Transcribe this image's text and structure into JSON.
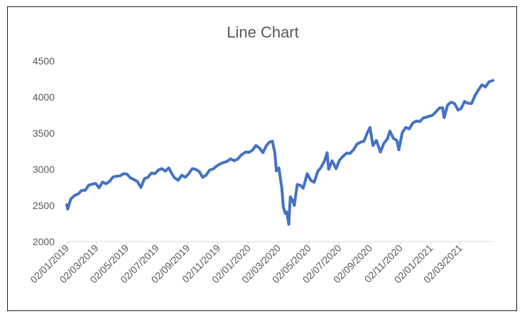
{
  "chart_data": {
    "type": "line",
    "title": "Line Chart",
    "xlabel": "",
    "ylabel": "",
    "ylim": [
      2000,
      4500
    ],
    "y_ticks": [
      2000,
      2500,
      3000,
      3500,
      4000,
      4500
    ],
    "y_tick_labels": [
      "2000",
      "2500",
      "3000",
      "3500",
      "4000",
      "4500"
    ],
    "x_range": [
      "2019-01-02",
      "2021-05-07"
    ],
    "x_tick_dates": [
      "2019-01-02",
      "2019-03-02",
      "2019-05-02",
      "2019-07-02",
      "2019-09-02",
      "2019-11-02",
      "2020-01-02",
      "2020-03-02",
      "2020-05-02",
      "2020-07-02",
      "2020-09-02",
      "2020-11-02",
      "2021-01-02",
      "2021-03-02"
    ],
    "x_tick_labels": [
      "02/01/2019",
      "02/03/2019",
      "02/05/2019",
      "02/07/2019",
      "02/09/2019",
      "02/11/2019",
      "02/01/2020",
      "02/03/2020",
      "02/05/2020",
      "02/07/2020",
      "02/09/2020",
      "02/11/2020",
      "02/01/2021",
      "02/03/2021"
    ],
    "grid": false,
    "legend": "none",
    "line_color": "#4472c4",
    "axis_color": "#d9d9d9",
    "series": [
      {
        "x": [
          "2019-01-02",
          "2019-01-04",
          "2019-01-10",
          "2019-01-18",
          "2019-01-25",
          "2019-02-01",
          "2019-02-08",
          "2019-02-15",
          "2019-02-22",
          "2019-03-01",
          "2019-03-08",
          "2019-03-15",
          "2019-03-22",
          "2019-03-29",
          "2019-04-05",
          "2019-04-12",
          "2019-04-19",
          "2019-04-26",
          "2019-05-03",
          "2019-05-10",
          "2019-05-17",
          "2019-05-24",
          "2019-05-31",
          "2019-06-07",
          "2019-06-14",
          "2019-06-21",
          "2019-06-28",
          "2019-07-05",
          "2019-07-12",
          "2019-07-19",
          "2019-07-26",
          "2019-08-02",
          "2019-08-07",
          "2019-08-14",
          "2019-08-21",
          "2019-08-28",
          "2019-09-04",
          "2019-09-11",
          "2019-09-18",
          "2019-09-25",
          "2019-10-02",
          "2019-10-09",
          "2019-10-16",
          "2019-10-23",
          "2019-10-30",
          "2019-11-06",
          "2019-11-13",
          "2019-11-20",
          "2019-11-27",
          "2019-12-04",
          "2019-12-11",
          "2019-12-18",
          "2019-12-27",
          "2020-01-03",
          "2020-01-10",
          "2020-01-17",
          "2020-01-24",
          "2020-01-31",
          "2020-02-07",
          "2020-02-14",
          "2020-02-19",
          "2020-02-24",
          "2020-02-27",
          "2020-03-03",
          "2020-03-09",
          "2020-03-12",
          "2020-03-16",
          "2020-03-19",
          "2020-03-23",
          "2020-03-26",
          "2020-03-30",
          "2020-04-03",
          "2020-04-09",
          "2020-04-15",
          "2020-04-21",
          "2020-04-29",
          "2020-05-06",
          "2020-05-13",
          "2020-05-20",
          "2020-05-27",
          "2020-06-03",
          "2020-06-08",
          "2020-06-11",
          "2020-06-18",
          "2020-06-26",
          "2020-07-03",
          "2020-07-10",
          "2020-07-17",
          "2020-07-24",
          "2020-07-31",
          "2020-08-07",
          "2020-08-14",
          "2020-08-21",
          "2020-08-28",
          "2020-09-02",
          "2020-09-08",
          "2020-09-15",
          "2020-09-23",
          "2020-09-30",
          "2020-10-07",
          "2020-10-12",
          "2020-10-19",
          "2020-10-26",
          "2020-10-30",
          "2020-11-06",
          "2020-11-13",
          "2020-11-20",
          "2020-11-27",
          "2020-12-04",
          "2020-12-11",
          "2020-12-18",
          "2020-12-28",
          "2021-01-06",
          "2021-01-13",
          "2021-01-20",
          "2021-01-26",
          "2021-01-29",
          "2021-02-05",
          "2021-02-12",
          "2021-02-19",
          "2021-02-26",
          "2021-03-04",
          "2021-03-11",
          "2021-03-18",
          "2021-03-25",
          "2021-04-01",
          "2021-04-08",
          "2021-04-15",
          "2021-04-22",
          "2021-04-29",
          "2021-05-07"
        ],
        "values": [
          2510,
          2450,
          2590,
          2640,
          2660,
          2710,
          2710,
          2780,
          2795,
          2805,
          2745,
          2825,
          2800,
          2835,
          2895,
          2905,
          2910,
          2940,
          2935,
          2880,
          2860,
          2830,
          2750,
          2870,
          2890,
          2950,
          2940,
          2990,
          3010,
          2975,
          3020,
          2930,
          2880,
          2850,
          2920,
          2890,
          2940,
          3010,
          3000,
          2970,
          2890,
          2920,
          2990,
          3005,
          3045,
          3075,
          3095,
          3110,
          3145,
          3120,
          3140,
          3195,
          3240,
          3235,
          3265,
          3330,
          3295,
          3230,
          3330,
          3380,
          3390,
          3230,
          2980,
          3020,
          2740,
          2480,
          2390,
          2410,
          2240,
          2620,
          2580,
          2500,
          2790,
          2780,
          2740,
          2940,
          2850,
          2820,
          2970,
          3030,
          3120,
          3230,
          3000,
          3120,
          3010,
          3130,
          3180,
          3225,
          3220,
          3270,
          3350,
          3375,
          3390,
          3510,
          3580,
          3330,
          3400,
          3240,
          3360,
          3420,
          3530,
          3430,
          3400,
          3270,
          3510,
          3580,
          3560,
          3640,
          3670,
          3660,
          3710,
          3730,
          3750,
          3800,
          3850,
          3850,
          3715,
          3890,
          3930,
          3910,
          3820,
          3840,
          3940,
          3915,
          3910,
          4020,
          4100,
          4170,
          4140,
          4210,
          4230
        ]
      }
    ]
  }
}
